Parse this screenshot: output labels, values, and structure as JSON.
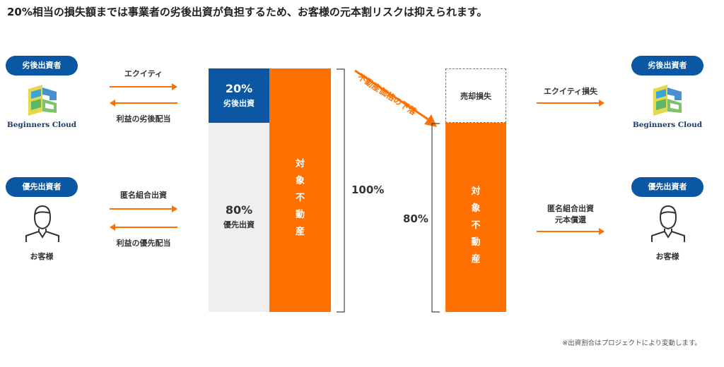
{
  "title": "20%相当の損失額までは事業者の劣後出資が負担するため、お客様の元本割リスクは抑えられます。",
  "left": {
    "subordinate": {
      "badge": "劣後出資者",
      "logo": "Beginners Cloud",
      "arrow_top": "エクイティ",
      "arrow_bottom": "利益の劣後配当"
    },
    "priority": {
      "badge": "優先出資者",
      "person": "お客様",
      "arrow_top": "匿名組合出資",
      "arrow_bottom": "利益の優先配当"
    }
  },
  "before": {
    "sub_pct": "20%",
    "sub_label": "劣後出資",
    "pri_pct": "80%",
    "pri_label": "優先出資",
    "asset": "対象不動産",
    "total": "100%"
  },
  "drop_label": "不動産価格の下落",
  "after": {
    "loss": "売却損失",
    "asset": "対象不動産",
    "pct": "80%"
  },
  "right": {
    "subordinate": {
      "badge": "劣後出資者",
      "logo": "Beginners Cloud",
      "arrow_label": "エクイティ損失"
    },
    "priority": {
      "badge": "優先出資者",
      "person": "お客様",
      "arrow_label_1": "匿名組合出資",
      "arrow_label_2": "元本償還"
    }
  },
  "note": "※出資割合はプロジェクトにより変動します。",
  "colors": {
    "blue": "#0b57a4",
    "orange": "#ff7000",
    "gray": "#efefef"
  }
}
